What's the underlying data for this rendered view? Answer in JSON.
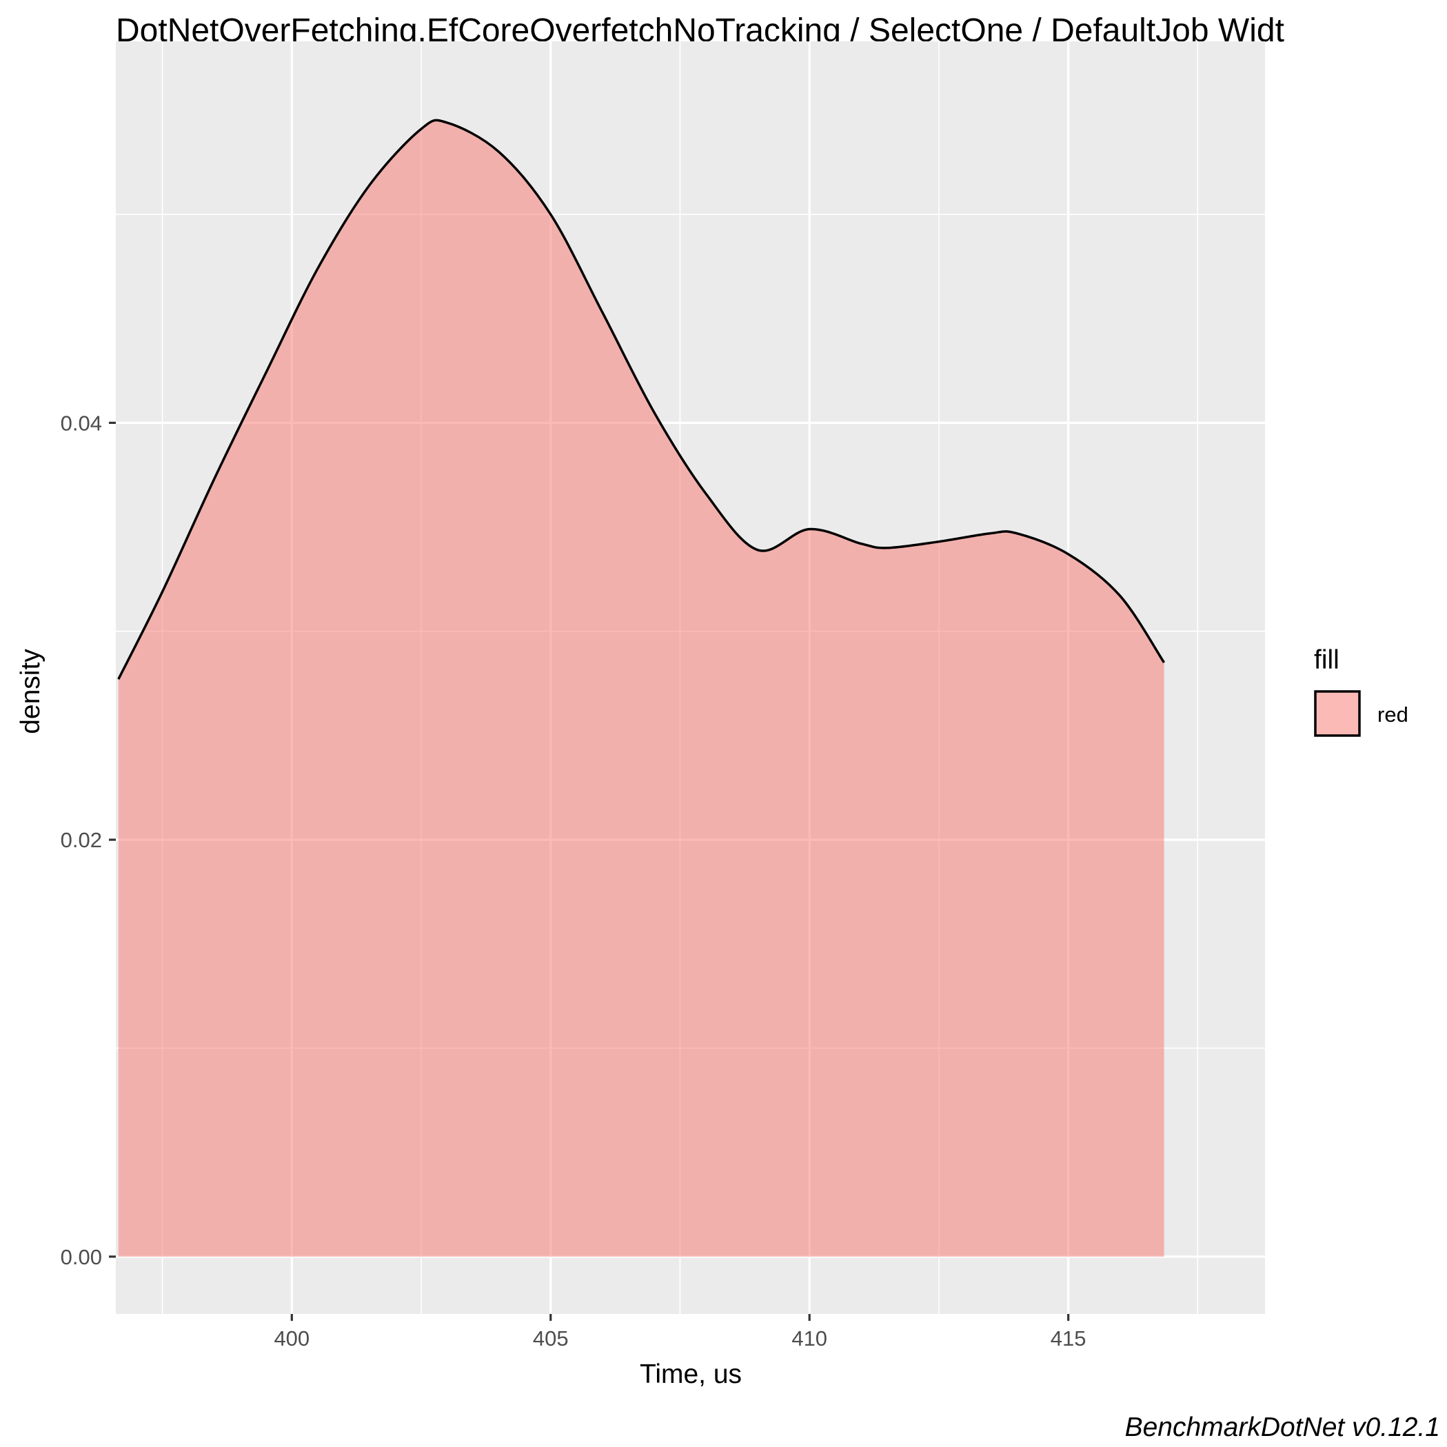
{
  "chart_data": {
    "type": "area",
    "title": "DotNetOverFetching.EfCoreOverfetchNoTracking / SelectOne / DefaultJob Widt",
    "xlabel": "Time, us",
    "ylabel": "density",
    "xlim": [
      396.6,
      418.8
    ],
    "ylim": [
      -0.00275,
      0.0583
    ],
    "x_ticks": [
      400,
      405,
      410,
      415
    ],
    "x_tick_labels": [
      "400",
      "405",
      "410",
      "415"
    ],
    "y_ticks": [
      0.0,
      0.02,
      0.04
    ],
    "y_tick_labels": [
      "0.00",
      "0.02",
      "0.04"
    ],
    "grid": true,
    "legend": {
      "title": "fill",
      "position": "right",
      "entries": [
        "red"
      ]
    },
    "caption": "BenchmarkDotNet v0.12.1",
    "series": [
      {
        "name": "red",
        "color": "#F8766D",
        "fill_alpha": 0.5,
        "x": [
          396.65,
          397.5,
          398.5,
          399.5,
          400.5,
          401.5,
          402.5,
          403.0,
          404.0,
          405.0,
          406.0,
          407.0,
          408.0,
          409.0,
          410.0,
          411.0,
          411.5,
          412.5,
          413.5,
          414.0,
          415.0,
          416.0,
          416.85
        ],
        "values": [
          0.0277,
          0.0319,
          0.0373,
          0.0424,
          0.0474,
          0.0514,
          0.0541,
          0.0544,
          0.053,
          0.05,
          0.0453,
          0.0405,
          0.0366,
          0.0339,
          0.0349,
          0.0342,
          0.034,
          0.0343,
          0.0347,
          0.0347,
          0.0337,
          0.0317,
          0.0285
        ]
      }
    ]
  }
}
